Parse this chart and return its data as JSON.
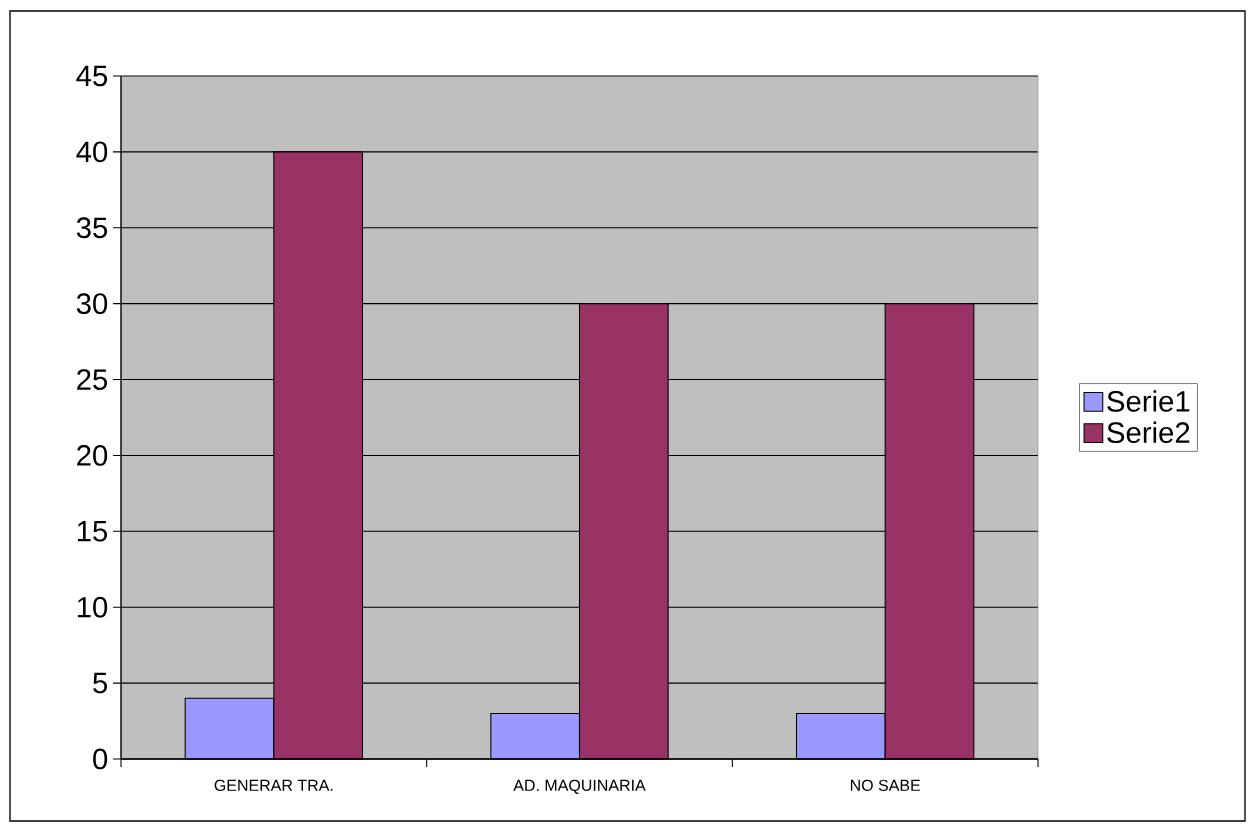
{
  "chart_data": {
    "type": "bar",
    "categories": [
      "GENERAR TRA.",
      "AD. MAQUINARIA",
      "NO SABE"
    ],
    "series": [
      {
        "name": "Serie1",
        "color": "#9999ff",
        "values": [
          4,
          3,
          3
        ]
      },
      {
        "name": "Serie2",
        "color": "#993366",
        "values": [
          40,
          30,
          30
        ]
      }
    ],
    "ylim": [
      0,
      45
    ],
    "yticks": [
      0,
      5,
      10,
      15,
      20,
      25,
      30,
      35,
      40,
      45
    ],
    "grid": "y",
    "legend": "right"
  }
}
